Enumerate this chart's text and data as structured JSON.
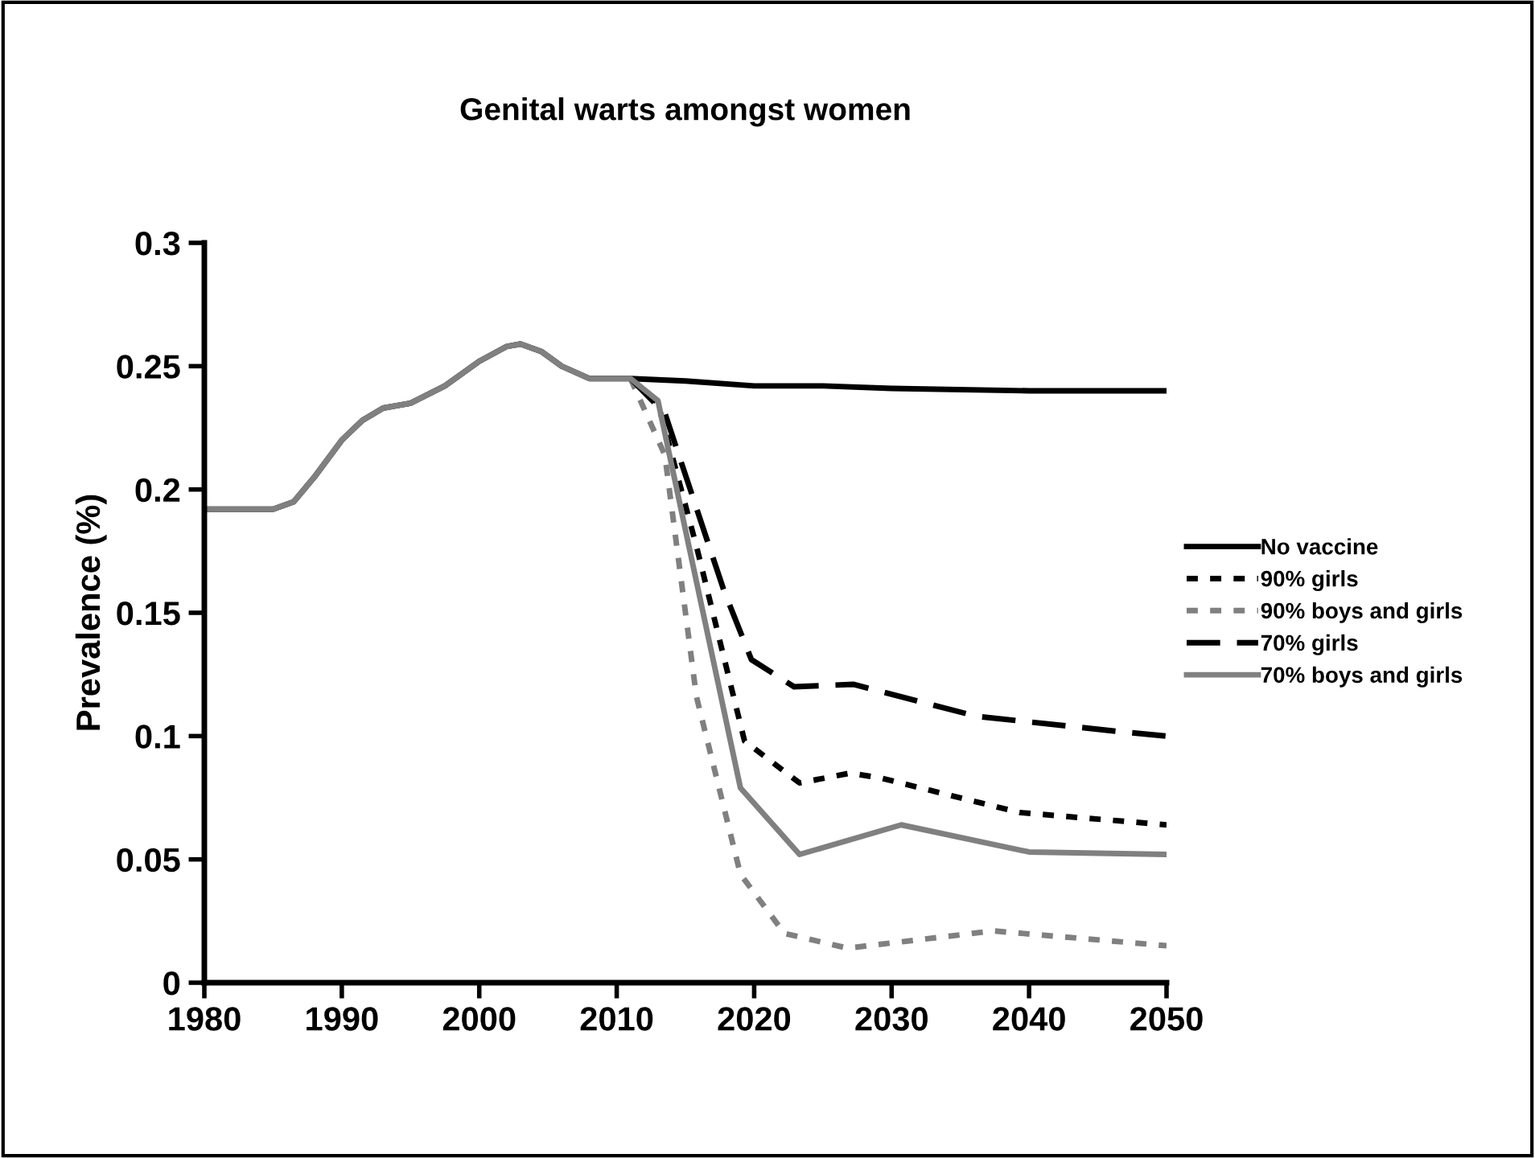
{
  "chart_data": {
    "type": "line",
    "title": "Genital warts amongst women",
    "ylabel": "Prevalence (%)",
    "xlim": [
      1980,
      2050
    ],
    "xticks": [
      1980,
      1990,
      2000,
      2010,
      2020,
      2030,
      2040,
      2050
    ],
    "ylim": [
      0,
      0.3
    ],
    "yticks": [
      0,
      0.05,
      0.1,
      0.15,
      0.2,
      0.25,
      0.3
    ],
    "grid": false,
    "legend": "right",
    "marker": "none",
    "series": [
      {
        "name": "No vaccine",
        "color": "#000000",
        "line_style": "solid",
        "x": [
          1980,
          1985,
          1986.5,
          1988,
          1990,
          1991.5,
          1993,
          1995,
          1997.5,
          2000,
          2002,
          2003,
          2004.5,
          2006,
          2008,
          2011,
          2015,
          2020,
          2025,
          2030,
          2040,
          2050
        ],
        "values": [
          0.192,
          0.192,
          0.195,
          0.205,
          0.22,
          0.228,
          0.233,
          0.235,
          0.242,
          0.252,
          0.258,
          0.259,
          0.256,
          0.25,
          0.245,
          0.245,
          0.244,
          0.242,
          0.242,
          0.241,
          0.24,
          0.24
        ]
      },
      {
        "name": "90% girls",
        "color": "#000000",
        "line_style": "dotted",
        "x": [
          2011,
          2013,
          2015.8,
          2019.3,
          2023.3,
          2027,
          2029.2,
          2039.3,
          2050
        ],
        "values": [
          0.245,
          0.235,
          0.177,
          0.098,
          0.081,
          0.085,
          0.083,
          0.069,
          0.064
        ]
      },
      {
        "name": "90% boys and girls",
        "color": "#808080",
        "line_style": "dotted",
        "x": [
          2011,
          2013.5,
          2015.8,
          2019,
          2022.2,
          2026.8,
          2037.4,
          2050
        ],
        "values": [
          0.245,
          0.214,
          0.116,
          0.044,
          0.02,
          0.014,
          0.021,
          0.015
        ]
      },
      {
        "name": "70% girls",
        "color": "#000000",
        "line_style": "dashed",
        "x": [
          2011,
          2013.5,
          2017.8,
          2019.8,
          2022.9,
          2027.2,
          2036.2,
          2046.3,
          2050
        ],
        "values": [
          0.245,
          0.231,
          0.159,
          0.131,
          0.12,
          0.121,
          0.108,
          0.102,
          0.1
        ]
      },
      {
        "name": "70% boys and girls",
        "color": "#808080",
        "line_style": "solid",
        "x": [
          1980,
          1985,
          1986.5,
          1988,
          1990,
          1991.5,
          1993,
          1995,
          1997.5,
          2000,
          2002,
          2003,
          2004.5,
          2006,
          2008,
          2011,
          2013,
          2015.1,
          2019,
          2023.3,
          2030.7,
          2040,
          2050
        ],
        "values": [
          0.192,
          0.192,
          0.195,
          0.205,
          0.22,
          0.228,
          0.233,
          0.235,
          0.242,
          0.252,
          0.258,
          0.259,
          0.256,
          0.25,
          0.245,
          0.245,
          0.236,
          0.181,
          0.079,
          0.052,
          0.064,
          0.053,
          0.052
        ]
      }
    ]
  }
}
